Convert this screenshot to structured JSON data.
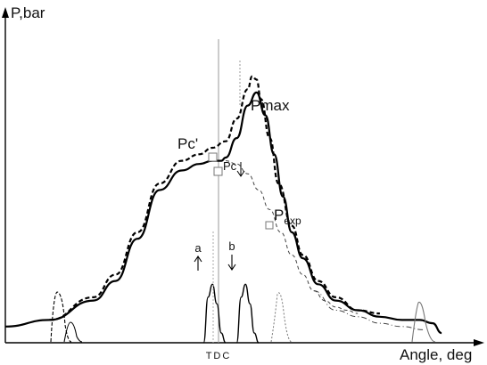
{
  "chart_data": {
    "type": "line",
    "title": "",
    "xlabel": "Angle, deg",
    "ylabel": "P,bar",
    "xlim": [
      -1,
      1
    ],
    "ylim": [
      0,
      1
    ],
    "tick_label": "TDC",
    "grid": false,
    "legend": "none",
    "annotations": {
      "pc_prime": "Pc'",
      "pmax": "Pmax",
      "pc": "Pc",
      "pexp": "P",
      "pexp_sub": "exp",
      "a": "a",
      "b": "b"
    },
    "series": [
      {
        "style": "solid",
        "color": "#000000",
        "x": [
          -1.0,
          -0.8,
          -0.6,
          -0.5,
          -0.4,
          -0.3,
          -0.2,
          -0.12,
          -0.06,
          -0.02,
          0.0,
          0.05,
          0.1,
          0.14,
          0.18,
          0.22,
          0.26,
          0.3,
          0.35,
          0.42,
          0.5,
          0.6,
          0.7,
          0.8,
          0.88,
          0.94,
          0.98
        ],
        "y": [
          0.05,
          0.07,
          0.13,
          0.19,
          0.32,
          0.47,
          0.53,
          0.55,
          0.56,
          0.56,
          0.57,
          0.63,
          0.73,
          0.77,
          0.7,
          0.58,
          0.45,
          0.34,
          0.26,
          0.18,
          0.13,
          0.1,
          0.08,
          0.07,
          0.07,
          0.06,
          0.03
        ]
      },
      {
        "style": "dashed",
        "color": "#000000",
        "x": [
          -0.8,
          -0.6,
          -0.5,
          -0.4,
          -0.3,
          -0.2,
          -0.12,
          -0.06,
          0.0,
          0.05,
          0.1,
          0.12,
          0.14,
          0.16,
          0.2,
          0.24,
          0.3,
          0.35,
          0.42,
          0.5,
          0.6,
          0.7
        ],
        "y": [
          0.07,
          0.14,
          0.21,
          0.34,
          0.49,
          0.56,
          0.58,
          0.6,
          0.62,
          0.69,
          0.78,
          0.82,
          0.81,
          0.75,
          0.63,
          0.49,
          0.36,
          0.27,
          0.19,
          0.14,
          0.1,
          0.09
        ]
      },
      {
        "style": "thin-dashed",
        "color": "#444444",
        "x": [
          0.0,
          0.05,
          0.1,
          0.15,
          0.2,
          0.25,
          0.3,
          0.35,
          0.4,
          0.45,
          0.5,
          0.55,
          0.6
        ],
        "y": [
          0.56,
          0.55,
          0.52,
          0.47,
          0.41,
          0.34,
          0.27,
          0.21,
          0.16,
          0.13,
          0.11,
          0.1,
          0.09
        ]
      },
      {
        "style": "dash-dot",
        "color": "#444444",
        "x": [
          0.4,
          0.5,
          0.6,
          0.7,
          0.8,
          0.9
        ],
        "y": [
          0.16,
          0.1,
          0.08,
          0.06,
          0.05,
          0.04
        ]
      },
      {
        "style": "injection-pulse",
        "color": "#000000",
        "x": [
          -0.1,
          -0.08,
          -0.06,
          -0.04,
          -0.02,
          0.0
        ],
        "y": [
          0.0,
          0.14,
          0.18,
          0.12,
          0.03,
          0.0
        ]
      },
      {
        "style": "injection-pulse",
        "color": "#000000",
        "x": [
          0.05,
          0.07,
          0.09,
          0.11,
          0.13,
          0.15
        ],
        "y": [
          0.0,
          0.14,
          0.18,
          0.12,
          0.03,
          0.0
        ]
      }
    ]
  }
}
